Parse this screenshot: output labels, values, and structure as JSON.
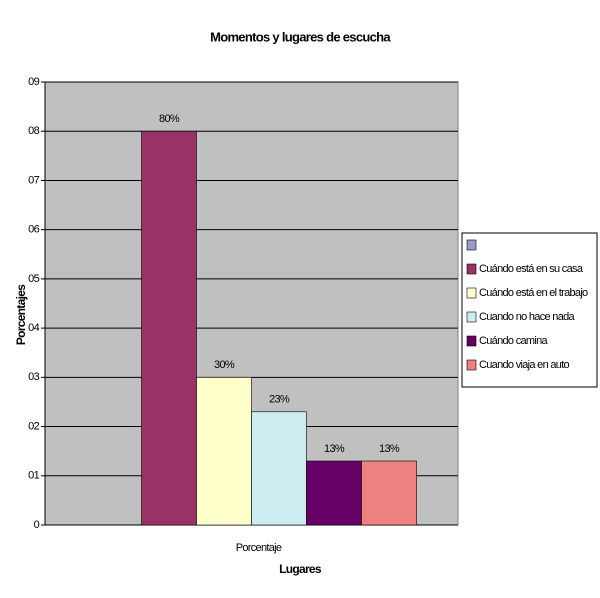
{
  "chart_data": {
    "type": "bar",
    "title": "Momentos y lugares de escucha",
    "x_label": "Lugares",
    "y_label": "Porcentajes",
    "categories": [
      "Porcentaje"
    ],
    "series": [
      {
        "name": null,
        "color": "#9999cc",
        "values": [
          null
        ]
      },
      {
        "name": "Cuándo está en su casa",
        "color": "#993366",
        "values": [
          0.8
        ],
        "value_labels": [
          "80%"
        ]
      },
      {
        "name": "Cuándo está en el trabajo",
        "color": "#ffffcc",
        "values": [
          0.3
        ],
        "value_labels": [
          "30%"
        ]
      },
      {
        "name": "Cuando no hace nada",
        "color": "#ccecf0",
        "values": [
          0.23
        ],
        "value_labels": [
          "23%"
        ]
      },
      {
        "name": "Cuándo camina",
        "color": "#660066",
        "values": [
          0.13
        ],
        "value_labels": [
          "13%"
        ]
      },
      {
        "name": "Cuando viaja en auto",
        "color": "#ee8080",
        "values": [
          0.13
        ],
        "value_labels": [
          "13%"
        ]
      }
    ],
    "ylim": [
      0,
      0.9
    ],
    "yticks": [
      0,
      {
        "value": 0.1,
        "label": "01"
      },
      {
        "value": 0.2,
        "label": "02"
      },
      {
        "value": 0.3,
        "label": "03"
      },
      {
        "value": 0.4,
        "label": "04"
      },
      {
        "value": 0.5,
        "label": "05"
      },
      {
        "value": 0.6,
        "label": "06"
      },
      {
        "value": 0.7,
        "label": "07"
      },
      {
        "value": 0.8,
        "label": "08"
      },
      {
        "value": 0.9,
        "label": "09"
      }
    ],
    "grid": true
  }
}
